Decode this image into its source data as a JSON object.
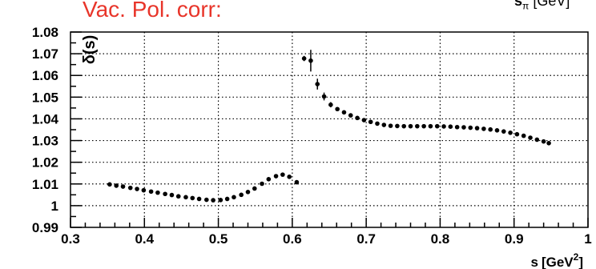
{
  "overlay": {
    "title": "Vac. Pol. corr:",
    "title_color": "#e8352a",
    "top_axis_label_main": "s",
    "top_axis_label_sub": "π",
    "top_axis_label_unit": "[GeV",
    "top_axis_label_tail": "]"
  },
  "chart_data": {
    "type": "scatter",
    "title": "",
    "ylabel": "δ(s)",
    "xlabel_main": "s",
    "xlabel_unit": "[GeV",
    "xlabel_sup": "2",
    "xlabel_tail": "]",
    "xlim": [
      0.3,
      1.0
    ],
    "ylim": [
      0.99,
      1.08
    ],
    "x_ticks": [
      0.3,
      0.4,
      0.5,
      0.6,
      0.7,
      0.8,
      0.9,
      1.0
    ],
    "x_tick_labels": [
      "0.3",
      "0.4",
      "0.5",
      "0.6",
      "0.7",
      "0.8",
      "0.9",
      "1"
    ],
    "y_ticks": [
      0.99,
      1.0,
      1.01,
      1.02,
      1.03,
      1.04,
      1.05,
      1.06,
      1.07,
      1.08
    ],
    "y_tick_labels": [
      "0.99",
      "1",
      "1.01",
      "1.02",
      "1.03",
      "1.04",
      "1.05",
      "1.06",
      "1.07",
      "1.08"
    ],
    "grid": true,
    "marker_color": "#000000",
    "series": [
      {
        "points": [
          {
            "x": 0.353,
            "y": 1.0098
          },
          {
            "x": 0.362,
            "y": 1.0092
          },
          {
            "x": 0.371,
            "y": 1.0088
          },
          {
            "x": 0.381,
            "y": 1.0082
          },
          {
            "x": 0.39,
            "y": 1.0077
          },
          {
            "x": 0.399,
            "y": 1.0071
          },
          {
            "x": 0.409,
            "y": 1.0065
          },
          {
            "x": 0.418,
            "y": 1.006
          },
          {
            "x": 0.428,
            "y": 1.0054
          },
          {
            "x": 0.437,
            "y": 1.0049
          },
          {
            "x": 0.446,
            "y": 1.0043
          },
          {
            "x": 0.456,
            "y": 1.0039
          },
          {
            "x": 0.465,
            "y": 1.0035
          },
          {
            "x": 0.474,
            "y": 1.0031
          },
          {
            "x": 0.484,
            "y": 1.0027
          },
          {
            "x": 0.493,
            "y": 1.0025
          },
          {
            "x": 0.503,
            "y": 1.0026
          },
          {
            "x": 0.512,
            "y": 1.0031
          },
          {
            "x": 0.521,
            "y": 1.0039
          },
          {
            "x": 0.531,
            "y": 1.005
          },
          {
            "x": 0.54,
            "y": 1.0063
          },
          {
            "x": 0.549,
            "y": 1.0079
          },
          {
            "x": 0.559,
            "y": 1.0101
          },
          {
            "x": 0.568,
            "y": 1.0122
          },
          {
            "x": 0.578,
            "y": 1.0136
          },
          {
            "x": 0.587,
            "y": 1.0143
          },
          {
            "x": 0.596,
            "y": 1.0133
          },
          {
            "x": 0.606,
            "y": 1.0108
          },
          {
            "x": 0.616,
            "y": 1.0678,
            "err": 0.0012
          },
          {
            "x": 0.625,
            "y": 1.0668,
            "err": 0.005
          },
          {
            "x": 0.634,
            "y": 1.056,
            "err": 0.0025
          },
          {
            "x": 0.643,
            "y": 1.0503,
            "err": 0.0018
          },
          {
            "x": 0.652,
            "y": 1.0465,
            "err": 0.0012
          },
          {
            "x": 0.661,
            "y": 1.0445
          },
          {
            "x": 0.67,
            "y": 1.043
          },
          {
            "x": 0.679,
            "y": 1.0416
          },
          {
            "x": 0.688,
            "y": 1.0404
          },
          {
            "x": 0.697,
            "y": 1.0394
          },
          {
            "x": 0.706,
            "y": 1.0386
          },
          {
            "x": 0.715,
            "y": 1.0378
          },
          {
            "x": 0.724,
            "y": 1.0372
          },
          {
            "x": 0.733,
            "y": 1.0368
          },
          {
            "x": 0.742,
            "y": 1.0367
          },
          {
            "x": 0.751,
            "y": 1.0366
          },
          {
            "x": 0.76,
            "y": 1.0366
          },
          {
            "x": 0.769,
            "y": 1.0366
          },
          {
            "x": 0.778,
            "y": 1.0366
          },
          {
            "x": 0.787,
            "y": 1.0366
          },
          {
            "x": 0.796,
            "y": 1.0366
          },
          {
            "x": 0.805,
            "y": 1.0365
          },
          {
            "x": 0.814,
            "y": 1.0364
          },
          {
            "x": 0.823,
            "y": 1.0362
          },
          {
            "x": 0.832,
            "y": 1.0361
          },
          {
            "x": 0.841,
            "y": 1.0359
          },
          {
            "x": 0.85,
            "y": 1.0357
          },
          {
            "x": 0.859,
            "y": 1.0354
          },
          {
            "x": 0.868,
            "y": 1.0351
          },
          {
            "x": 0.877,
            "y": 1.0347
          },
          {
            "x": 0.886,
            "y": 1.0342
          },
          {
            "x": 0.895,
            "y": 1.0336
          },
          {
            "x": 0.904,
            "y": 1.0329
          },
          {
            "x": 0.913,
            "y": 1.0322
          },
          {
            "x": 0.922,
            "y": 1.0313
          },
          {
            "x": 0.931,
            "y": 1.0304
          },
          {
            "x": 0.94,
            "y": 1.0296
          },
          {
            "x": 0.947,
            "y": 1.0288
          }
        ]
      }
    ]
  }
}
